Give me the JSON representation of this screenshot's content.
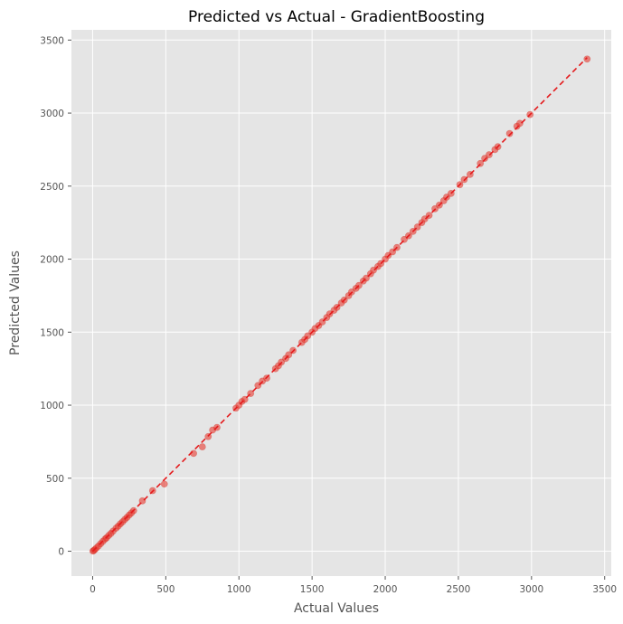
{
  "chart_data": {
    "type": "scatter",
    "title": "Predicted vs Actual - GradientBoosting",
    "xlabel": "Actual Values",
    "ylabel": "Predicted Values",
    "xlim": [
      -145,
      3545
    ],
    "ylim": [
      -170,
      3570
    ],
    "xticks": [
      0,
      500,
      1000,
      1500,
      2000,
      2500,
      3000,
      3500
    ],
    "yticks": [
      0,
      500,
      1000,
      1500,
      2000,
      2500,
      3000,
      3500
    ],
    "grid": true,
    "reference_line": {
      "style": "dashed",
      "from": [
        0,
        0
      ],
      "to": [
        3380,
        3380
      ],
      "color": "#e41a1c"
    },
    "colors": {
      "points": "#e8392f",
      "background": "#e5e5e5",
      "grid": "#ffffff"
    },
    "series": [
      {
        "points": [
          [
            2,
            1
          ],
          [
            8,
            5
          ],
          [
            15,
            12
          ],
          [
            25,
            22
          ],
          [
            40,
            36
          ],
          [
            55,
            52
          ],
          [
            70,
            68
          ],
          [
            85,
            83
          ],
          [
            95,
            92
          ],
          [
            110,
            108
          ],
          [
            125,
            122
          ],
          [
            140,
            138
          ],
          [
            160,
            158
          ],
          [
            175,
            172
          ],
          [
            190,
            188
          ],
          [
            205,
            202
          ],
          [
            220,
            218
          ],
          [
            235,
            232
          ],
          [
            250,
            248
          ],
          [
            265,
            262
          ],
          [
            280,
            278
          ],
          [
            340,
            345
          ],
          [
            410,
            415
          ],
          [
            490,
            460
          ],
          [
            690,
            670
          ],
          [
            750,
            715
          ],
          [
            790,
            785
          ],
          [
            820,
            830
          ],
          [
            850,
            848
          ],
          [
            980,
            980
          ],
          [
            1000,
            1000
          ],
          [
            1020,
            1025
          ],
          [
            1040,
            1040
          ],
          [
            1080,
            1080
          ],
          [
            1130,
            1135
          ],
          [
            1160,
            1165
          ],
          [
            1190,
            1185
          ],
          [
            1250,
            1250
          ],
          [
            1270,
            1270
          ],
          [
            1290,
            1295
          ],
          [
            1320,
            1320
          ],
          [
            1340,
            1345
          ],
          [
            1370,
            1375
          ],
          [
            1430,
            1430
          ],
          [
            1450,
            1450
          ],
          [
            1470,
            1475
          ],
          [
            1500,
            1500
          ],
          [
            1520,
            1525
          ],
          [
            1545,
            1545
          ],
          [
            1570,
            1570
          ],
          [
            1600,
            1600
          ],
          [
            1620,
            1625
          ],
          [
            1650,
            1650
          ],
          [
            1670,
            1670
          ],
          [
            1700,
            1700
          ],
          [
            1720,
            1720
          ],
          [
            1750,
            1750
          ],
          [
            1770,
            1775
          ],
          [
            1800,
            1800
          ],
          [
            1820,
            1820
          ],
          [
            1850,
            1850
          ],
          [
            1870,
            1870
          ],
          [
            1900,
            1900
          ],
          [
            1920,
            1925
          ],
          [
            1950,
            1950
          ],
          [
            1970,
            1970
          ],
          [
            2000,
            2000
          ],
          [
            2020,
            2025
          ],
          [
            2050,
            2050
          ],
          [
            2080,
            2080
          ],
          [
            2130,
            2135
          ],
          [
            2160,
            2160
          ],
          [
            2190,
            2190
          ],
          [
            2220,
            2220
          ],
          [
            2250,
            2250
          ],
          [
            2270,
            2275
          ],
          [
            2300,
            2300
          ],
          [
            2340,
            2345
          ],
          [
            2370,
            2370
          ],
          [
            2400,
            2400
          ],
          [
            2420,
            2425
          ],
          [
            2450,
            2450
          ],
          [
            2510,
            2510
          ],
          [
            2540,
            2545
          ],
          [
            2580,
            2580
          ],
          [
            2650,
            2655
          ],
          [
            2680,
            2690
          ],
          [
            2710,
            2715
          ],
          [
            2750,
            2750
          ],
          [
            2770,
            2770
          ],
          [
            2850,
            2860
          ],
          [
            2900,
            2910
          ],
          [
            2920,
            2930
          ],
          [
            2990,
            2990
          ],
          [
            3380,
            3370
          ]
        ]
      }
    ]
  }
}
